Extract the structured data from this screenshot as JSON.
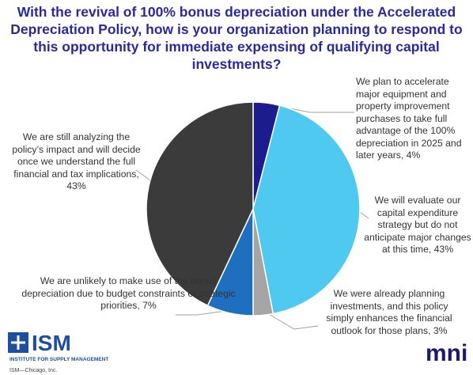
{
  "chart_data": {
    "type": "pie",
    "title": "With the revival of 100% bonus depreciation under the Accelerated Depreciation Policy, how is your organization planning to respond to this opportunity for immediate expensing of qualifying capital investments?",
    "categories": [
      "We plan to accelerate major equipment and property improvement purchases to take full advantage of the 100% depreciation in 2025 and later years,",
      "We will evaluate our capital expenditure strategy but do not anticipate major changes at this time,",
      "We were already planning investments, and this policy simply enhances the financial outlook for those plans,",
      "We are unlikely to make use of the bonus depreciation due to budget constraints or strategic priorities,",
      "We are still analyzing the policy’s impact and will decide once we understand the full financial and tax implications,"
    ],
    "values": [
      4,
      43,
      3,
      7,
      43
    ],
    "value_labels": [
      "4%",
      "43%",
      "3%",
      "7%",
      "43%"
    ],
    "colors": [
      "#1c1c8f",
      "#4fc9ef",
      "#a5a5a5",
      "#1f6fc1",
      "#3b3b3b"
    ]
  },
  "logos": {
    "ism": "ISM",
    "ism_sub": "INSTITUTE FOR SUPPLY MANAGEMENT",
    "ism_credit": "ISM—Chicago, Inc.",
    "mni": "mni"
  }
}
